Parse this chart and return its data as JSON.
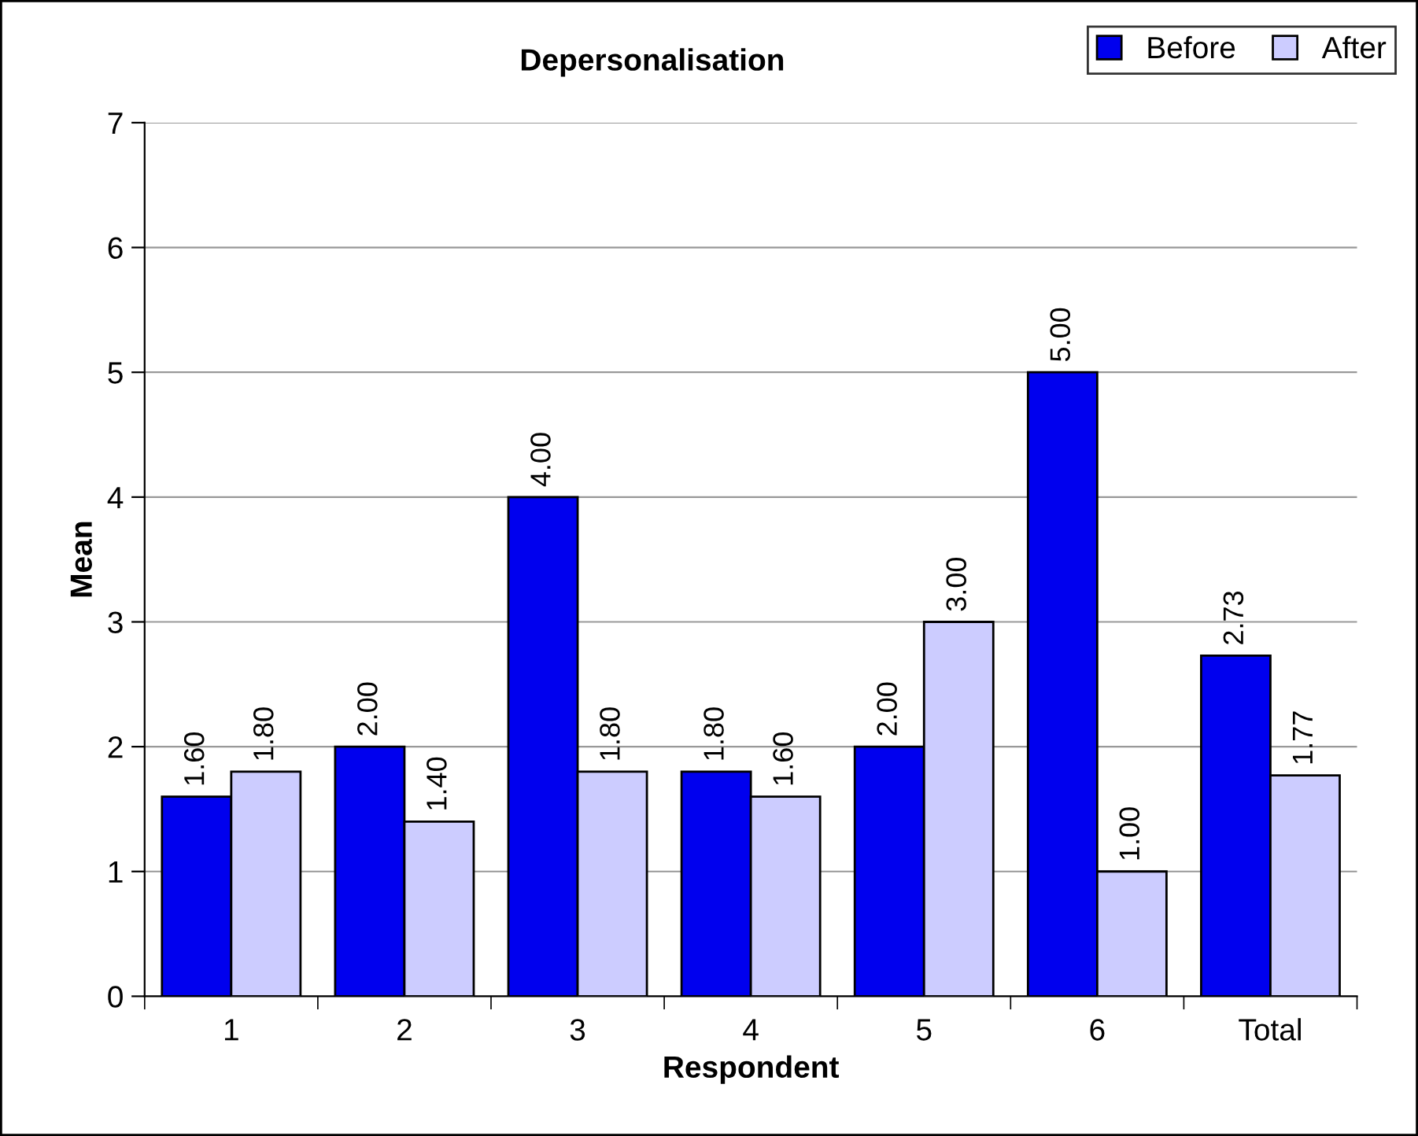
{
  "chart_data": {
    "type": "bar",
    "title": "Depersonalisation",
    "xlabel": "Respondent",
    "ylabel": "Mean",
    "categories": [
      "1",
      "2",
      "3",
      "4",
      "5",
      "6",
      "Total"
    ],
    "series": [
      {
        "name": "Before",
        "color": "#0000ee",
        "values": [
          1.6,
          2.0,
          4.0,
          1.8,
          2.0,
          5.0,
          2.73
        ],
        "value_labels": [
          "1.60",
          "2.00",
          "4.00",
          "1.80",
          "2.00",
          "5.00",
          "2.73"
        ]
      },
      {
        "name": "After",
        "color": "#ccccff",
        "values": [
          1.8,
          1.4,
          1.8,
          1.6,
          3.0,
          1.0,
          1.77
        ],
        "value_labels": [
          "1.80",
          "1.40",
          "1.80",
          "1.60",
          "3.00",
          "1.00",
          "1.77"
        ]
      }
    ],
    "ylim": [
      0,
      7
    ],
    "yticks": [
      0,
      1,
      2,
      3,
      4,
      5,
      6,
      7
    ],
    "grid": "y",
    "legend": "top right"
  }
}
